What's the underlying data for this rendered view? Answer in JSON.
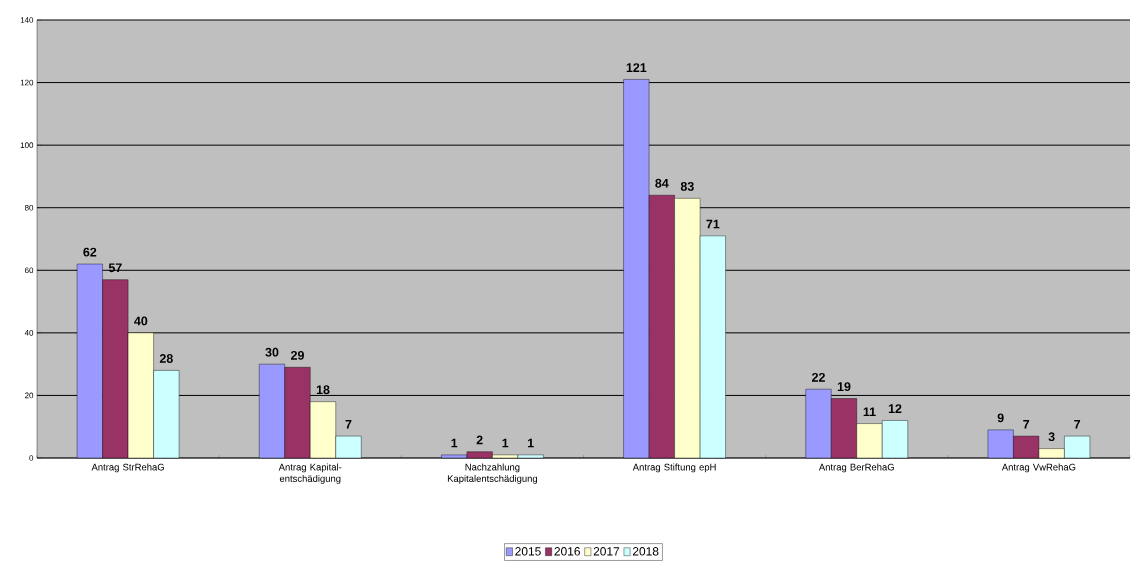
{
  "chart_data": {
    "type": "bar",
    "categories": [
      "Antrag StrRehaG",
      "Antrag Kapital- entschädigung",
      "Nachzahlung Kapitalentschädigung",
      "Antrag Stiftung epH",
      "Antrag BerRehaG",
      "Antrag VwRehaG"
    ],
    "series": [
      {
        "name": "2015",
        "color": "#9999ff",
        "values": [
          62,
          30,
          1,
          121,
          22,
          9
        ]
      },
      {
        "name": "2016",
        "color": "#993366",
        "values": [
          57,
          29,
          2,
          84,
          19,
          7
        ]
      },
      {
        "name": "2017",
        "color": "#ffffcc",
        "values": [
          40,
          18,
          1,
          83,
          11,
          3
        ]
      },
      {
        "name": "2018",
        "color": "#ccffff",
        "values": [
          28,
          7,
          1,
          71,
          12,
          7
        ]
      }
    ],
    "ylim": [
      0,
      140
    ],
    "yticks": [
      0,
      20,
      40,
      60,
      80,
      100,
      120,
      140
    ],
    "grid": "y",
    "legend": "bottom",
    "data_labels": true
  }
}
